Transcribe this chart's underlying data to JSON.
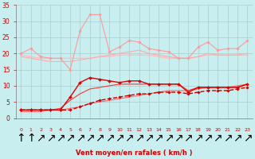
{
  "background_color": "#c8eef0",
  "grid_color": "#aacccc",
  "xlabel": "Vent moyen/en rafales ( km/h )",
  "xlabel_color": "#cc0000",
  "ylabel_color": "#cc0000",
  "xlim_min": -0.5,
  "xlim_max": 23.5,
  "ylim": [
    0,
    35
  ],
  "yticks": [
    0,
    5,
    10,
    15,
    20,
    25,
    30,
    35
  ],
  "xticks": [
    0,
    1,
    2,
    3,
    4,
    5,
    6,
    7,
    8,
    9,
    10,
    11,
    12,
    13,
    14,
    15,
    16,
    17,
    18,
    19,
    20,
    21,
    22,
    23
  ],
  "series": [
    {
      "name": "pink_spiky",
      "x": [
        0,
        1,
        2,
        3,
        4,
        5,
        6,
        7,
        8,
        9,
        10,
        11,
        12,
        13,
        14,
        15,
        16,
        17,
        18,
        19,
        20,
        21,
        22,
        23
      ],
      "y": [
        20.0,
        21.5,
        19.0,
        18.5,
        18.5,
        15.0,
        27.0,
        32.0,
        32.0,
        20.5,
        22.0,
        24.0,
        23.5,
        21.5,
        21.0,
        20.5,
        18.5,
        18.5,
        22.0,
        23.5,
        21.0,
        21.5,
        21.5,
        24.0
      ],
      "color": "#ff9999",
      "linewidth": 0.8,
      "marker": "D",
      "markersize": 1.8,
      "linestyle": "-",
      "zorder": 3
    },
    {
      "name": "pink_flat",
      "x": [
        0,
        1,
        2,
        3,
        4,
        5,
        6,
        7,
        8,
        9,
        10,
        11,
        12,
        13,
        14,
        15,
        16,
        17,
        18,
        19,
        20,
        21,
        22,
        23
      ],
      "y": [
        19.5,
        19.0,
        18.5,
        18.5,
        18.5,
        18.5,
        18.5,
        18.5,
        19.0,
        19.0,
        19.5,
        19.5,
        19.5,
        19.5,
        19.0,
        18.5,
        18.5,
        18.5,
        19.0,
        19.5,
        19.5,
        19.5,
        19.5,
        19.5
      ],
      "color": "#ffbbbb",
      "linewidth": 0.8,
      "marker": "D",
      "markersize": 1.5,
      "linestyle": "-",
      "zorder": 2
    },
    {
      "name": "pink_medium",
      "x": [
        0,
        1,
        2,
        3,
        4,
        5,
        6,
        7,
        8,
        9,
        10,
        11,
        12,
        13,
        14,
        15,
        16,
        17,
        18,
        19,
        20,
        21,
        22,
        23
      ],
      "y": [
        19.0,
        18.5,
        18.0,
        17.5,
        17.5,
        17.5,
        18.0,
        18.5,
        19.0,
        19.5,
        20.0,
        20.5,
        21.0,
        20.0,
        19.5,
        19.0,
        18.5,
        18.5,
        19.0,
        20.0,
        19.5,
        19.5,
        19.5,
        20.0
      ],
      "color": "#ffaaaa",
      "linewidth": 0.8,
      "marker": null,
      "markersize": 0,
      "linestyle": "-",
      "zorder": 2
    },
    {
      "name": "red_peaked",
      "x": [
        0,
        1,
        2,
        3,
        4,
        5,
        6,
        7,
        8,
        9,
        10,
        11,
        12,
        13,
        14,
        15,
        16,
        17,
        18,
        19,
        20,
        21,
        22,
        23
      ],
      "y": [
        2.5,
        2.5,
        2.5,
        2.5,
        2.5,
        6.5,
        11.0,
        12.5,
        12.0,
        11.5,
        11.0,
        11.5,
        11.5,
        10.5,
        10.5,
        10.5,
        10.5,
        8.0,
        9.5,
        9.5,
        9.5,
        9.5,
        9.5,
        10.5
      ],
      "color": "#dd0000",
      "linewidth": 1.0,
      "marker": "D",
      "markersize": 2.0,
      "linestyle": "-",
      "zorder": 5
    },
    {
      "name": "red_smooth",
      "x": [
        0,
        1,
        2,
        3,
        4,
        5,
        6,
        7,
        8,
        9,
        10,
        11,
        12,
        13,
        14,
        15,
        16,
        17,
        18,
        19,
        20,
        21,
        22,
        23
      ],
      "y": [
        2.5,
        2.5,
        2.5,
        2.5,
        3.0,
        5.5,
        7.5,
        9.0,
        9.5,
        10.0,
        10.5,
        10.5,
        10.5,
        10.5,
        10.5,
        10.5,
        10.5,
        8.5,
        9.5,
        9.5,
        9.5,
        9.5,
        9.5,
        10.5
      ],
      "color": "#ff3333",
      "linewidth": 0.8,
      "marker": null,
      "markersize": 0,
      "linestyle": "-",
      "zorder": 4
    },
    {
      "name": "red_dashed_markers",
      "x": [
        0,
        1,
        2,
        3,
        4,
        5,
        6,
        7,
        8,
        9,
        10,
        11,
        12,
        13,
        14,
        15,
        16,
        17,
        18,
        19,
        20,
        21,
        22,
        23
      ],
      "y": [
        2.5,
        2.5,
        2.5,
        2.5,
        2.5,
        2.5,
        3.5,
        4.5,
        5.5,
        6.0,
        6.5,
        7.0,
        7.5,
        7.5,
        8.0,
        8.0,
        8.0,
        7.5,
        8.0,
        8.5,
        8.5,
        8.5,
        9.0,
        9.5
      ],
      "color": "#cc0000",
      "linewidth": 1.0,
      "marker": "D",
      "markersize": 1.8,
      "linestyle": "--",
      "zorder": 4
    },
    {
      "name": "red_rising",
      "x": [
        0,
        1,
        2,
        3,
        4,
        5,
        6,
        7,
        8,
        9,
        10,
        11,
        12,
        13,
        14,
        15,
        16,
        17,
        18,
        19,
        20,
        21,
        22,
        23
      ],
      "y": [
        2.0,
        2.0,
        2.0,
        2.5,
        2.5,
        3.0,
        3.5,
        4.5,
        5.0,
        5.5,
        6.0,
        6.5,
        7.0,
        7.5,
        8.0,
        8.5,
        8.5,
        8.5,
        9.0,
        9.5,
        9.5,
        9.5,
        10.0,
        10.5
      ],
      "color": "#ff6666",
      "linewidth": 0.8,
      "marker": null,
      "markersize": 0,
      "linestyle": "-",
      "zorder": 3
    }
  ],
  "arrow_chars": [
    "↑",
    "↑",
    "↗",
    "↗",
    "↗",
    "↗",
    "↗",
    "↗",
    "↗",
    "↗",
    "↗",
    "↗",
    "↗",
    "↗",
    "↗",
    "↗",
    "↗",
    "↗",
    "↗",
    "↗",
    "↗",
    "↗",
    "↗",
    "↗"
  ]
}
